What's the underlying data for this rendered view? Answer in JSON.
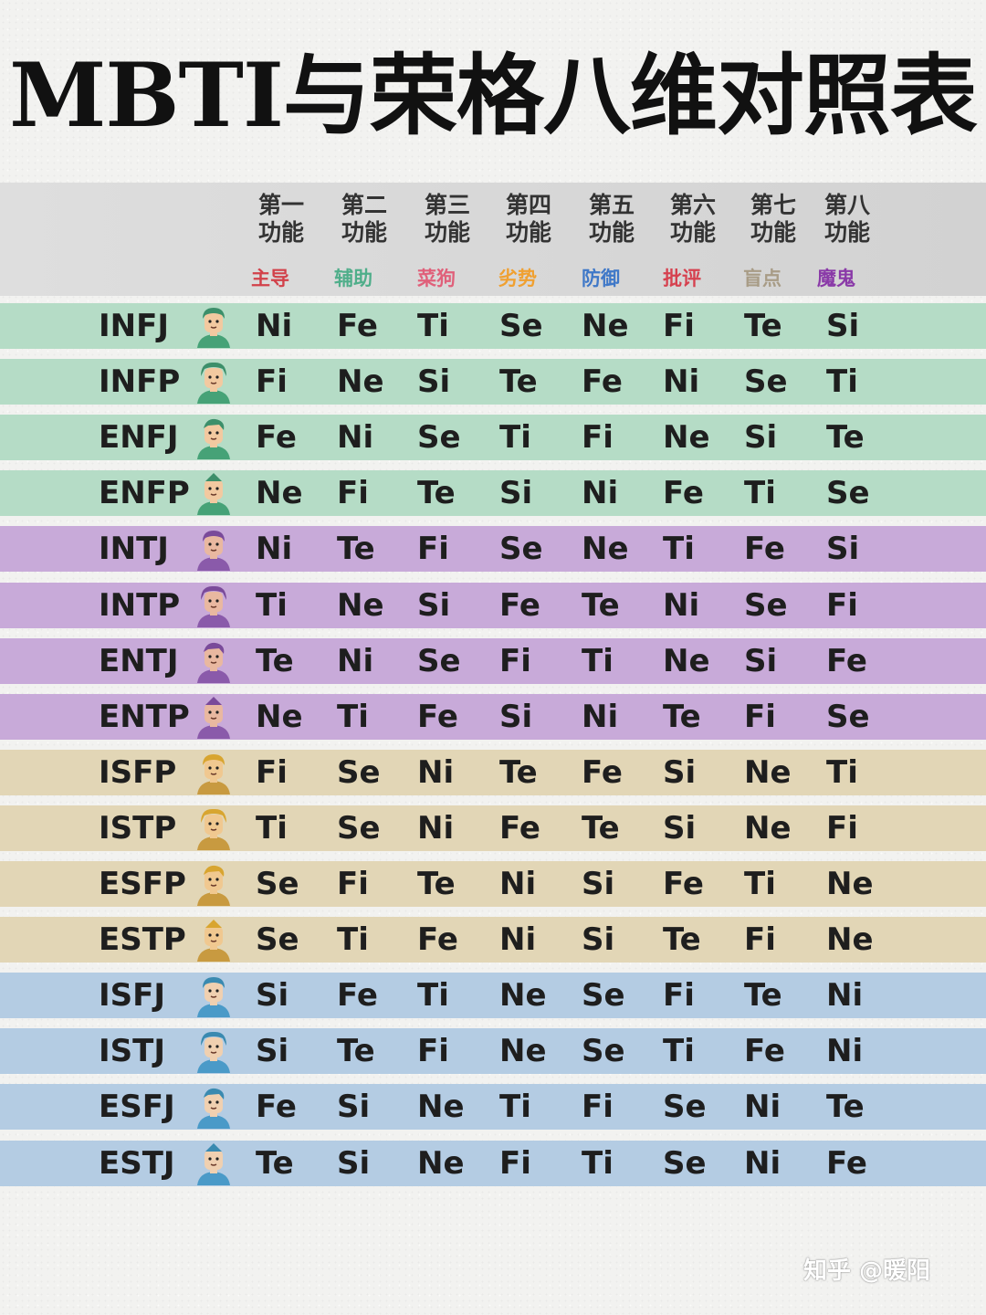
{
  "title": "MBTI与荣格八维对照表",
  "columns": [
    {
      "line1": "第一",
      "line2": "功能",
      "role": "主导",
      "role_color": "#d2414a"
    },
    {
      "line1": "第二",
      "line2": "功能",
      "role": "辅助",
      "role_color": "#4fae8a"
    },
    {
      "line1": "第三",
      "line2": "功能",
      "role": "菜狗",
      "role_color": "#e0607a"
    },
    {
      "line1": "第四",
      "line2": "功能",
      "role": "劣势",
      "role_color": "#f0a030"
    },
    {
      "line1": "第五",
      "line2": "功能",
      "role": "防御",
      "role_color": "#3f78c8"
    },
    {
      "line1": "第六",
      "line2": "功能",
      "role": "批评",
      "role_color": "#d6414f"
    },
    {
      "line1": "第七",
      "line2": "功能",
      "role": "盲点",
      "role_color": "#a89c86"
    },
    {
      "line1": "第八",
      "line2": "功能",
      "role": "魔鬼",
      "role_color": "#8a3aa8"
    }
  ],
  "group_colors": {
    "diplomat": "#b5dcc6",
    "analyst": "#c8aad9",
    "explorer": "#e2d6b6",
    "sentinel": "#b4cce3"
  },
  "rows": [
    {
      "type": "INFJ",
      "group": "diplomat",
      "functions": [
        "Ni",
        "Fe",
        "Ti",
        "Se",
        "Ne",
        "Fi",
        "Te",
        "Si"
      ]
    },
    {
      "type": "INFP",
      "group": "diplomat",
      "functions": [
        "Fi",
        "Ne",
        "Si",
        "Te",
        "Fe",
        "Ni",
        "Se",
        "Ti"
      ]
    },
    {
      "type": "ENFJ",
      "group": "diplomat",
      "functions": [
        "Fe",
        "Ni",
        "Se",
        "Ti",
        "Fi",
        "Ne",
        "Si",
        "Te"
      ]
    },
    {
      "type": "ENFP",
      "group": "diplomat",
      "functions": [
        "Ne",
        "Fi",
        "Te",
        "Si",
        "Ni",
        "Fe",
        "Ti",
        "Se"
      ]
    },
    {
      "type": "INTJ",
      "group": "analyst",
      "functions": [
        "Ni",
        "Te",
        "Fi",
        "Se",
        "Ne",
        "Ti",
        "Fe",
        "Si"
      ]
    },
    {
      "type": "INTP",
      "group": "analyst",
      "functions": [
        "Ti",
        "Ne",
        "Si",
        "Fe",
        "Te",
        "Ni",
        "Se",
        "Fi"
      ]
    },
    {
      "type": "ENTJ",
      "group": "analyst",
      "functions": [
        "Te",
        "Ni",
        "Se",
        "Fi",
        "Ti",
        "Ne",
        "Si",
        "Fe"
      ]
    },
    {
      "type": "ENTP",
      "group": "analyst",
      "functions": [
        "Ne",
        "Ti",
        "Fe",
        "Si",
        "Ni",
        "Te",
        "Fi",
        "Se"
      ]
    },
    {
      "type": "ISFP",
      "group": "explorer",
      "functions": [
        "Fi",
        "Se",
        "Ni",
        "Te",
        "Fe",
        "Si",
        "Ne",
        "Ti"
      ]
    },
    {
      "type": "ISTP",
      "group": "explorer",
      "functions": [
        "Ti",
        "Se",
        "Ni",
        "Fe",
        "Te",
        "Si",
        "Ne",
        "Fi"
      ]
    },
    {
      "type": "ESFP",
      "group": "explorer",
      "functions": [
        "Se",
        "Fi",
        "Te",
        "Ni",
        "Si",
        "Fe",
        "Ti",
        "Ne"
      ]
    },
    {
      "type": "ESTP",
      "group": "explorer",
      "functions": [
        "Se",
        "Ti",
        "Fe",
        "Ni",
        "Si",
        "Te",
        "Fi",
        "Ne"
      ]
    },
    {
      "type": "ISFJ",
      "group": "sentinel",
      "functions": [
        "Si",
        "Fe",
        "Ti",
        "Ne",
        "Se",
        "Fi",
        "Te",
        "Ni"
      ]
    },
    {
      "type": "ISTJ",
      "group": "sentinel",
      "functions": [
        "Si",
        "Te",
        "Fi",
        "Ne",
        "Se",
        "Ti",
        "Fe",
        "Ni"
      ]
    },
    {
      "type": "ESFJ",
      "group": "sentinel",
      "functions": [
        "Fe",
        "Si",
        "Ne",
        "Ti",
        "Fi",
        "Se",
        "Ni",
        "Te"
      ]
    },
    {
      "type": "ESTJ",
      "group": "sentinel",
      "functions": [
        "Te",
        "Si",
        "Ne",
        "Fi",
        "Ti",
        "Se",
        "Ni",
        "Fe"
      ]
    }
  ],
  "avatar_palettes": {
    "diplomat": {
      "skin": "#f2c9a0",
      "hair": "#3c8f6a",
      "shirt": "#46a277"
    },
    "analyst": {
      "skin": "#e9b8a0",
      "hair": "#7a4a9a",
      "shirt": "#8a5aaa"
    },
    "explorer": {
      "skin": "#f0c890",
      "hair": "#d8a530",
      "shirt": "#c89a40"
    },
    "sentinel": {
      "skin": "#f0d0b0",
      "hair": "#3a8ab0",
      "shirt": "#4a9ac8"
    }
  },
  "watermark": "知乎 @暖阳"
}
